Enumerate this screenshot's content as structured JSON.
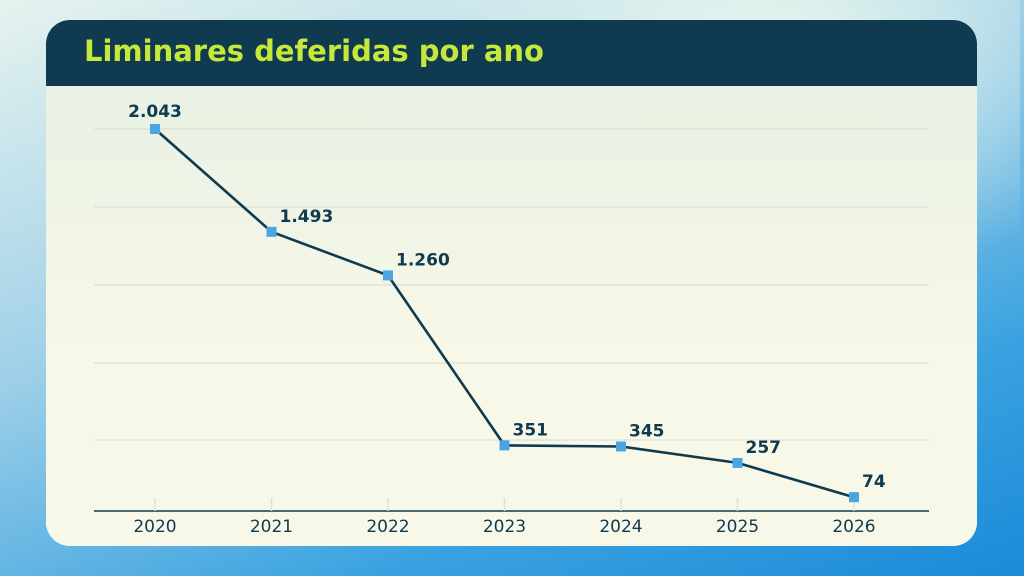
{
  "chart_data": {
    "type": "line",
    "title": "Liminares deferidas por ano",
    "categories": [
      "2020",
      "2021",
      "2022",
      "2023",
      "2024",
      "2025",
      "2026"
    ],
    "series": [
      {
        "values": [
          2043,
          1493,
          1260,
          351,
          345,
          257,
          74
        ],
        "labels": [
          "2.043",
          "1.493",
          "1.260",
          "351",
          "345",
          "257",
          "74"
        ]
      }
    ],
    "xlabel": "",
    "ylabel": "",
    "ylim": [
      0,
      2250
    ],
    "grid": true,
    "legend": "none"
  },
  "colors": {
    "line": "#0f3a4f",
    "marker": "#4aa6e2",
    "title": "#c6e83a",
    "header": "#0f3a4f",
    "grid": "#d8e2d8",
    "text": "#0f3a4f"
  }
}
